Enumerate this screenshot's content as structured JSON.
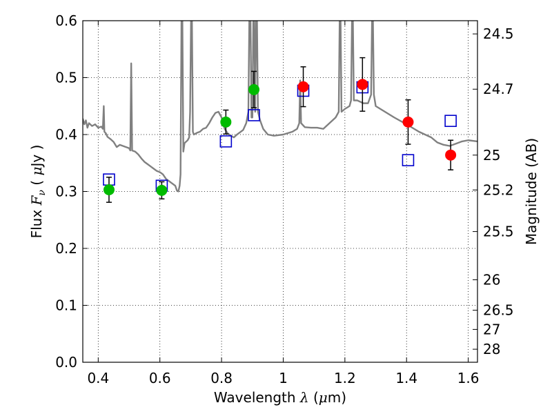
{
  "chart_data": {
    "type": "scatter",
    "xlabel": "Wavelength  λ (μm)",
    "ylabel": "Flux  F_ν  ( μJy )",
    "ylabel_right": "Magnitude (AB)",
    "xlim": [
      0.35,
      1.63
    ],
    "ylim": [
      0.0,
      0.6
    ],
    "xticks": [
      0.4,
      0.6,
      0.8,
      1.0,
      1.2,
      1.4,
      1.6
    ],
    "xtick_labels": [
      "0.4",
      "0.6",
      "0.8",
      "1",
      "1.2",
      "1.4",
      "1.6"
    ],
    "yticks": [
      0.0,
      0.1,
      0.2,
      0.3,
      0.4,
      0.5,
      0.6
    ],
    "ytick_labels": [
      "0.0",
      "0.1",
      "0.2",
      "0.3",
      "0.4",
      "0.5",
      "0.6"
    ],
    "right_ticks": [
      {
        "label": "24.5",
        "flux": 0.5768
      },
      {
        "label": "24.7",
        "flux": 0.4797
      },
      {
        "label": "25",
        "flux": 0.3639
      },
      {
        "label": "25.2",
        "flux": 0.3027
      },
      {
        "label": "25.5",
        "flux": 0.2296
      },
      {
        "label": "26",
        "flux": 0.1449
      },
      {
        "label": "26.5",
        "flux": 0.0914
      },
      {
        "label": "27",
        "flux": 0.0577
      },
      {
        "label": "28",
        "flux": 0.0229
      }
    ],
    "grid": true,
    "series": [
      {
        "name": "green points",
        "color": "#00bb00",
        "marker": "circle",
        "points": [
          {
            "x": 0.435,
            "y": 0.303,
            "err": 0.022
          },
          {
            "x": 0.606,
            "y": 0.302,
            "err": 0.015
          },
          {
            "x": 0.814,
            "y": 0.422,
            "err": 0.021
          },
          {
            "x": 0.905,
            "y": 0.479,
            "err": 0.032
          }
        ]
      },
      {
        "name": "red points",
        "color": "#ff0000",
        "marker": "circle",
        "points": [
          {
            "x": 1.065,
            "y": 0.484,
            "err": 0.035
          },
          {
            "x": 1.257,
            "y": 0.488,
            "err": 0.047
          },
          {
            "x": 1.405,
            "y": 0.422,
            "err": 0.039
          },
          {
            "x": 1.543,
            "y": 0.364,
            "err": 0.026
          }
        ]
      },
      {
        "name": "model fluxes",
        "color": "#0000cc",
        "marker": "open-square",
        "points": [
          {
            "x": 0.435,
            "y": 0.321
          },
          {
            "x": 0.606,
            "y": 0.31
          },
          {
            "x": 0.814,
            "y": 0.388
          },
          {
            "x": 0.905,
            "y": 0.434
          },
          {
            "x": 1.065,
            "y": 0.477
          },
          {
            "x": 1.257,
            "y": 0.483
          },
          {
            "x": 1.405,
            "y": 0.355
          },
          {
            "x": 1.543,
            "y": 0.424
          }
        ]
      },
      {
        "name": "SED model spectrum",
        "color": "#808080",
        "marker": "line",
        "points": [
          [
            0.35,
            0.428
          ],
          [
            0.355,
            0.418
          ],
          [
            0.36,
            0.425
          ],
          [
            0.365,
            0.412
          ],
          [
            0.37,
            0.42
          ],
          [
            0.38,
            0.415
          ],
          [
            0.39,
            0.418
          ],
          [
            0.4,
            0.412
          ],
          [
            0.41,
            0.414
          ],
          [
            0.415,
            0.41
          ],
          [
            0.418,
            0.45
          ],
          [
            0.42,
            0.405
          ],
          [
            0.425,
            0.402
          ],
          [
            0.43,
            0.396
          ],
          [
            0.44,
            0.392
          ],
          [
            0.45,
            0.387
          ],
          [
            0.46,
            0.378
          ],
          [
            0.47,
            0.382
          ],
          [
            0.48,
            0.38
          ],
          [
            0.49,
            0.378
          ],
          [
            0.5,
            0.376
          ],
          [
            0.504,
            0.372
          ],
          [
            0.507,
            0.525
          ],
          [
            0.51,
            0.372
          ],
          [
            0.52,
            0.37
          ],
          [
            0.53,
            0.365
          ],
          [
            0.54,
            0.358
          ],
          [
            0.55,
            0.352
          ],
          [
            0.56,
            0.348
          ],
          [
            0.57,
            0.344
          ],
          [
            0.58,
            0.34
          ],
          [
            0.59,
            0.336
          ],
          [
            0.6,
            0.334
          ],
          [
            0.61,
            0.33
          ],
          [
            0.62,
            0.322
          ],
          [
            0.63,
            0.318
          ],
          [
            0.64,
            0.314
          ],
          [
            0.65,
            0.31
          ],
          [
            0.655,
            0.302
          ],
          [
            0.66,
            0.3
          ],
          [
            0.664,
            0.31
          ],
          [
            0.667,
            0.33
          ],
          [
            0.67,
            0.6
          ],
          [
            0.673,
            0.6
          ],
          [
            0.676,
            0.37
          ],
          [
            0.68,
            0.385
          ],
          [
            0.69,
            0.39
          ],
          [
            0.695,
            0.395
          ],
          [
            0.698,
            0.44
          ],
          [
            0.701,
            0.6
          ],
          [
            0.704,
            0.6
          ],
          [
            0.707,
            0.405
          ],
          [
            0.71,
            0.4
          ],
          [
            0.72,
            0.403
          ],
          [
            0.73,
            0.405
          ],
          [
            0.74,
            0.41
          ],
          [
            0.75,
            0.412
          ],
          [
            0.76,
            0.42
          ],
          [
            0.77,
            0.43
          ],
          [
            0.78,
            0.438
          ],
          [
            0.79,
            0.44
          ],
          [
            0.8,
            0.43
          ],
          [
            0.81,
            0.41
          ],
          [
            0.82,
            0.402
          ],
          [
            0.83,
            0.398
          ],
          [
            0.84,
            0.395
          ],
          [
            0.85,
            0.4
          ],
          [
            0.86,
            0.404
          ],
          [
            0.87,
            0.408
          ],
          [
            0.88,
            0.42
          ],
          [
            0.887,
            0.44
          ],
          [
            0.89,
            0.6
          ],
          [
            0.894,
            0.6
          ],
          [
            0.897,
            0.43
          ],
          [
            0.9,
            0.43
          ],
          [
            0.903,
            0.6
          ],
          [
            0.906,
            0.6
          ],
          [
            0.909,
            0.44
          ],
          [
            0.912,
            0.6
          ],
          [
            0.915,
            0.6
          ],
          [
            0.918,
            0.44
          ],
          [
            0.925,
            0.425
          ],
          [
            0.935,
            0.41
          ],
          [
            0.95,
            0.4
          ],
          [
            0.97,
            0.398
          ],
          [
            1.0,
            0.4
          ],
          [
            1.03,
            0.405
          ],
          [
            1.045,
            0.41
          ],
          [
            1.052,
            0.42
          ],
          [
            1.055,
            0.495
          ],
          [
            1.058,
            0.42
          ],
          [
            1.07,
            0.413
          ],
          [
            1.09,
            0.412
          ],
          [
            1.11,
            0.412
          ],
          [
            1.13,
            0.41
          ],
          [
            1.15,
            0.42
          ],
          [
            1.17,
            0.43
          ],
          [
            1.18,
            0.44
          ],
          [
            1.183,
            0.6
          ],
          [
            1.186,
            0.6
          ],
          [
            1.189,
            0.44
          ],
          [
            1.2,
            0.445
          ],
          [
            1.215,
            0.45
          ],
          [
            1.22,
            0.46
          ],
          [
            1.223,
            0.6
          ],
          [
            1.226,
            0.6
          ],
          [
            1.229,
            0.46
          ],
          [
            1.24,
            0.46
          ],
          [
            1.26,
            0.455
          ],
          [
            1.275,
            0.455
          ],
          [
            1.285,
            0.47
          ],
          [
            1.288,
            0.6
          ],
          [
            1.291,
            0.6
          ],
          [
            1.294,
            0.47
          ],
          [
            1.3,
            0.45
          ],
          [
            1.33,
            0.44
          ],
          [
            1.36,
            0.43
          ],
          [
            1.4,
            0.418
          ],
          [
            1.44,
            0.405
          ],
          [
            1.48,
            0.395
          ],
          [
            1.5,
            0.386
          ],
          [
            1.52,
            0.382
          ],
          [
            1.54,
            0.38
          ],
          [
            1.56,
            0.384
          ],
          [
            1.58,
            0.388
          ],
          [
            1.6,
            0.39
          ],
          [
            1.63,
            0.388
          ]
        ]
      }
    ]
  }
}
